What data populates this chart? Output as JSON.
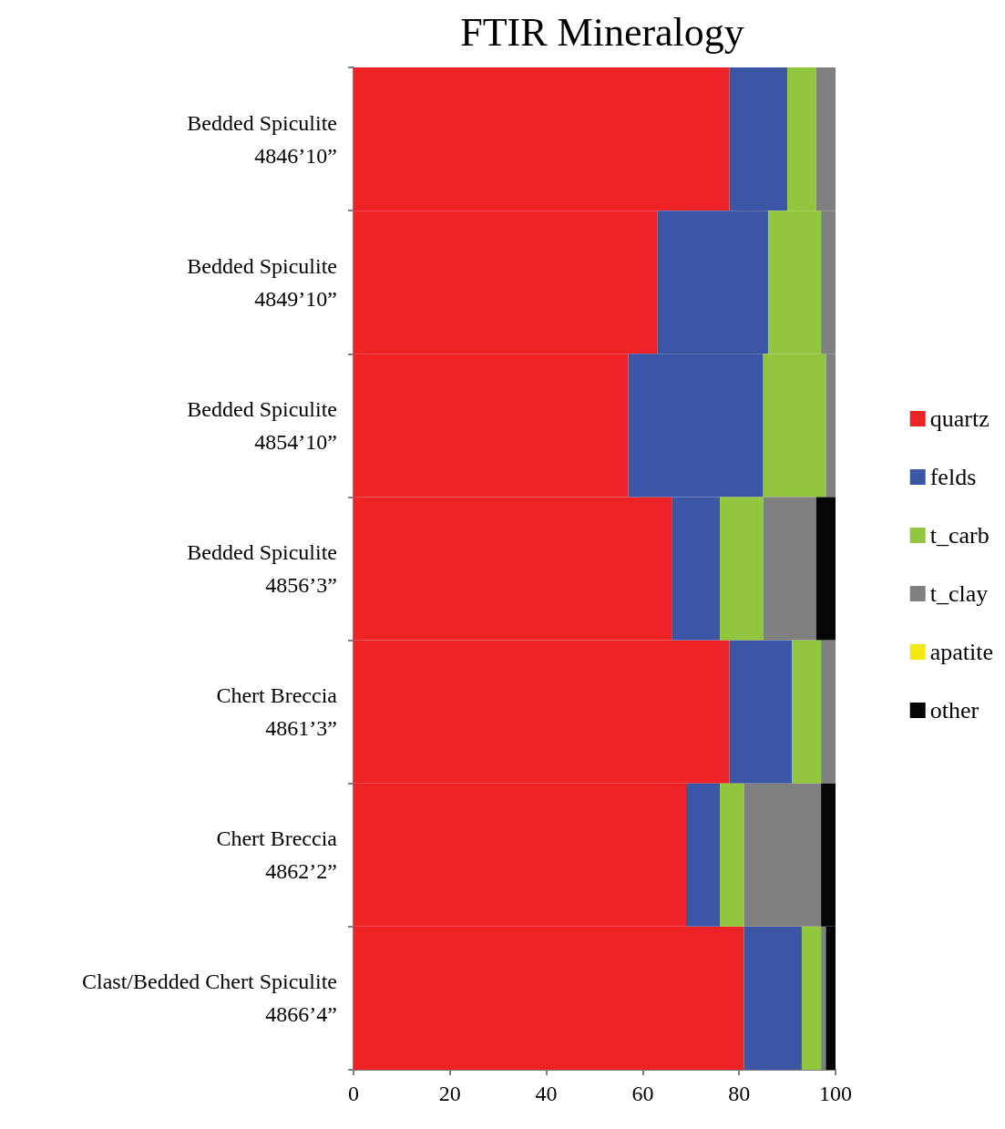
{
  "chart_data": {
    "type": "bar",
    "title": "FTIR Mineralogy",
    "orientation": "horizontal",
    "stacked": true,
    "categories": [
      "Bedded Spiculite\n4846’10”",
      "Bedded Spiculite\n4849’10”",
      "Bedded Spiculite\n4854’10”",
      "Bedded Spiculite\n4856’3”",
      "Chert Breccia\n4861’3”",
      "Chert Breccia\n4862’2”",
      "Clast/Bedded Chert Spiculite\n4866’4”"
    ],
    "series": [
      {
        "name": "quartz",
        "color": "#ed2224",
        "values": [
          78,
          63,
          57,
          66,
          78,
          69,
          81
        ]
      },
      {
        "name": "felds",
        "color": "#3a56a5",
        "values": [
          12,
          23,
          28,
          10,
          13,
          7,
          12
        ]
      },
      {
        "name": "t_carb",
        "color": "#92c63f",
        "values": [
          6,
          11,
          13,
          9,
          6,
          5,
          4
        ]
      },
      {
        "name": "t_clay",
        "color": "#808080",
        "values": [
          4,
          3,
          2,
          11,
          3,
          16,
          1
        ]
      },
      {
        "name": "apatite",
        "color": "#f2e913",
        "values": [
          0,
          0,
          0,
          0,
          0,
          0,
          0
        ]
      },
      {
        "name": "other",
        "color": "#050505",
        "values": [
          0,
          0,
          0,
          4,
          0,
          3,
          2
        ]
      }
    ],
    "xlim": [
      0,
      100
    ],
    "xticks": [
      0,
      20,
      40,
      60,
      80,
      100
    ],
    "grid": false,
    "legend": "right"
  }
}
